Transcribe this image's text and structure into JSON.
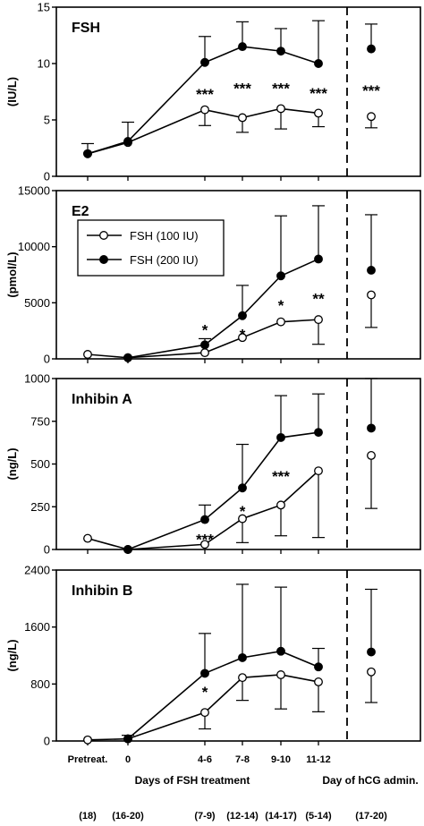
{
  "figure": {
    "x_positions": [
      "Pretreat.",
      "0",
      "4-6",
      "7-8",
      "9-10",
      "11-12",
      "hCG"
    ],
    "x_tick_labels": [
      "Pretreat.",
      "0",
      "4-6",
      "7-8",
      "9-10",
      "11-12"
    ],
    "xlabel_main": "Days of FSH treatment",
    "xlabel_hcg": "Day of hCG  admin.",
    "n_labels": [
      "(18)",
      "(16-20)",
      "(7-9)",
      "(12-14)",
      "(14-17)",
      "(5-14)",
      "(17-20)"
    ],
    "legend": [
      "FSH (100 IU)",
      "FSH (200 IU)"
    ]
  },
  "chart_data": [
    {
      "type": "line",
      "title": "FSH",
      "ylabel": "(IU/L)",
      "ylim": [
        0,
        15
      ],
      "yticks": [
        0,
        5,
        10,
        15
      ],
      "series": [
        {
          "marker": "open",
          "values": [
            2.0,
            3.0,
            5.9,
            5.2,
            6.0,
            5.6,
            5.3
          ],
          "errors": [
            null,
            null,
            1.4,
            1.3,
            1.8,
            1.2,
            1.0
          ]
        },
        {
          "marker": "filled",
          "values": [
            2.0,
            3.1,
            10.1,
            11.5,
            11.1,
            10.0,
            11.3
          ],
          "errors": [
            0.9,
            1.7,
            2.3,
            2.2,
            2.0,
            3.8,
            2.2
          ]
        }
      ],
      "annotations": [
        {
          "x_index": 2,
          "text": "***",
          "y": 7.3
        },
        {
          "x_index": 3,
          "text": "***",
          "y": 7.8
        },
        {
          "x_index": 4,
          "text": "***",
          "y": 7.8
        },
        {
          "x_index": 5,
          "text": "***",
          "y": 7.4
        },
        {
          "x_index": 6,
          "text": "***",
          "y": 7.6
        }
      ]
    },
    {
      "type": "line",
      "title": "E2",
      "ylabel": "(pmol/L)",
      "ylim": [
        0,
        15000
      ],
      "yticks": [
        0,
        5000,
        10000,
        15000
      ],
      "series": [
        {
          "name": "FSH (100 IU)",
          "marker": "open",
          "values": [
            400,
            100,
            550,
            1900,
            3300,
            3500,
            5700
          ],
          "errors": [
            null,
            null,
            null,
            null,
            null,
            2200,
            2900
          ]
        },
        {
          "name": "FSH (200 IU)",
          "marker": "filled",
          "values": [
            null,
            100,
            1250,
            3850,
            7400,
            8900,
            7900
          ],
          "errors": [
            null,
            null,
            550,
            2700,
            5350,
            4750,
            4950
          ]
        }
      ],
      "annotations": [
        {
          "x_index": 2,
          "text": "*",
          "y": 2600
        },
        {
          "x_index": 3,
          "text": "*",
          "y": 2200
        },
        {
          "x_index": 4,
          "text": "*",
          "y": 4800
        },
        {
          "x_index": 5,
          "text": "**",
          "y": 5400
        }
      ]
    },
    {
      "type": "line",
      "title": "Inhibin A",
      "ylabel": "(ng/L)",
      "ylim": [
        0,
        1000
      ],
      "yticks": [
        0,
        250,
        500,
        750,
        1000
      ],
      "series": [
        {
          "marker": "open",
          "values": [
            65,
            0,
            30,
            180,
            260,
            460,
            550
          ],
          "errors": [
            null,
            null,
            null,
            140,
            180,
            390,
            310
          ]
        },
        {
          "marker": "filled",
          "values": [
            null,
            0,
            175,
            360,
            655,
            685,
            710
          ],
          "errors": [
            null,
            null,
            85,
            255,
            245,
            225,
            290
          ]
        }
      ],
      "annotations": [
        {
          "x_index": 2,
          "text": "***",
          "y": 60
        },
        {
          "x_index": 3,
          "text": "*",
          "y": 225
        },
        {
          "x_index": 4,
          "text": "***",
          "y": 430
        }
      ]
    },
    {
      "type": "line",
      "title": "Inhibin B",
      "ylabel": "(ng/L)",
      "ylim": [
        0,
        2400
      ],
      "yticks": [
        0,
        800,
        1600,
        2400
      ],
      "series": [
        {
          "marker": "open",
          "values": [
            15,
            30,
            400,
            890,
            930,
            830,
            970
          ],
          "errors": [
            null,
            null,
            230,
            320,
            480,
            420,
            430
          ]
        },
        {
          "marker": "filled",
          "values": [
            null,
            30,
            950,
            1170,
            1260,
            1040,
            1250
          ],
          "errors": [
            null,
            50,
            560,
            1030,
            900,
            260,
            880
          ]
        }
      ],
      "annotations": [
        {
          "x_index": 2,
          "text": "*",
          "y": 690
        }
      ]
    }
  ]
}
